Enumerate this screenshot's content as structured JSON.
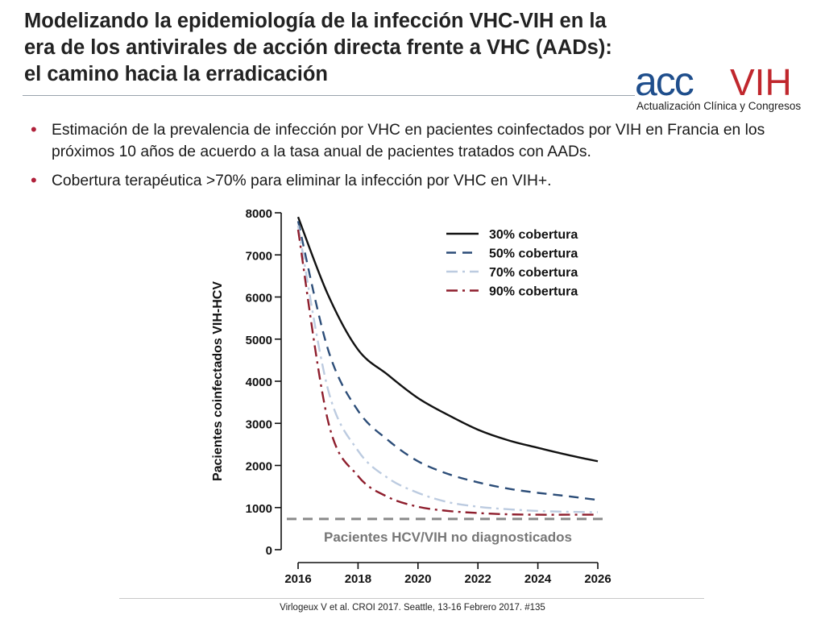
{
  "header": {
    "title_lines": [
      "Modelizando la epidemiología de la infección VHC-VIH en la",
      "era de los antivirales de acción directa frente a VHC (AADs):",
      "el camino hacia la erradicación"
    ]
  },
  "logo": {
    "wordmark_a": "acc",
    "wordmark_b": "VIH",
    "tagline": "Actualización Clínica y Congresos",
    "colors": {
      "primary": "#1f4e8c",
      "secondary": "#c0272d"
    }
  },
  "bullets": [
    "Estimación de la prevalencia de infección por VHC en pacientes coinfectados por VIH en Francia en los próximos 10 años de acuerdo a la tasa anual de pacientes tratados con AADs.",
    "Cobertura terapéutica >70% para eliminar la infección por VHC en VIH+."
  ],
  "chart_data": {
    "type": "line",
    "title": "",
    "xlabel": "",
    "ylabel": "Pacientes coinfectados VIH-HCV",
    "xlim": [
      2016,
      2026
    ],
    "ylim": [
      0,
      8000
    ],
    "xticks": [
      2016,
      2018,
      2020,
      2022,
      2024,
      2026
    ],
    "yticks": [
      0,
      1000,
      2000,
      3000,
      4000,
      5000,
      6000,
      7000,
      8000
    ],
    "grid": false,
    "legend_position": "top-right",
    "series": [
      {
        "name": "30% cobertura",
        "color": "#111111",
        "dash": "solid",
        "x": [
          2016,
          2017,
          2018,
          2019,
          2020,
          2021,
          2022,
          2023,
          2024,
          2025,
          2026
        ],
        "y": [
          7900,
          6050,
          4750,
          4150,
          3600,
          3200,
          2850,
          2600,
          2420,
          2250,
          2100
        ]
      },
      {
        "name": "50% cobertura",
        "color": "#2c4d78",
        "dash": "dashed",
        "x": [
          2016,
          2017,
          2018,
          2019,
          2020,
          2021,
          2022,
          2023,
          2024,
          2025,
          2026
        ],
        "y": [
          7800,
          4750,
          3300,
          2600,
          2100,
          1800,
          1600,
          1450,
          1350,
          1270,
          1180
        ]
      },
      {
        "name": "70% cobertura",
        "color": "#bccbe0",
        "dash": "dashdot",
        "x": [
          2016,
          2017,
          2018,
          2019,
          2020,
          2021,
          2022,
          2023,
          2024,
          2025,
          2026
        ],
        "y": [
          7700,
          3800,
          2350,
          1700,
          1350,
          1130,
          1020,
          960,
          920,
          900,
          890
        ]
      },
      {
        "name": "90% cobertura",
        "color": "#8e1d2c",
        "dash": "dashdot",
        "x": [
          2016,
          2017,
          2018,
          2019,
          2020,
          2021,
          2022,
          2023,
          2024,
          2025,
          2026
        ],
        "y": [
          7600,
          3050,
          1750,
          1250,
          1020,
          920,
          870,
          840,
          830,
          830,
          830
        ]
      }
    ],
    "reference_line": {
      "y": 730,
      "label": "Pacientes HCV/VIH no diagnosticados",
      "color": "#8a8a8a"
    }
  },
  "citation": "Virlogeux V et al. CROI 2017. Seattle, 13-16 Febrero 2017. #135"
}
